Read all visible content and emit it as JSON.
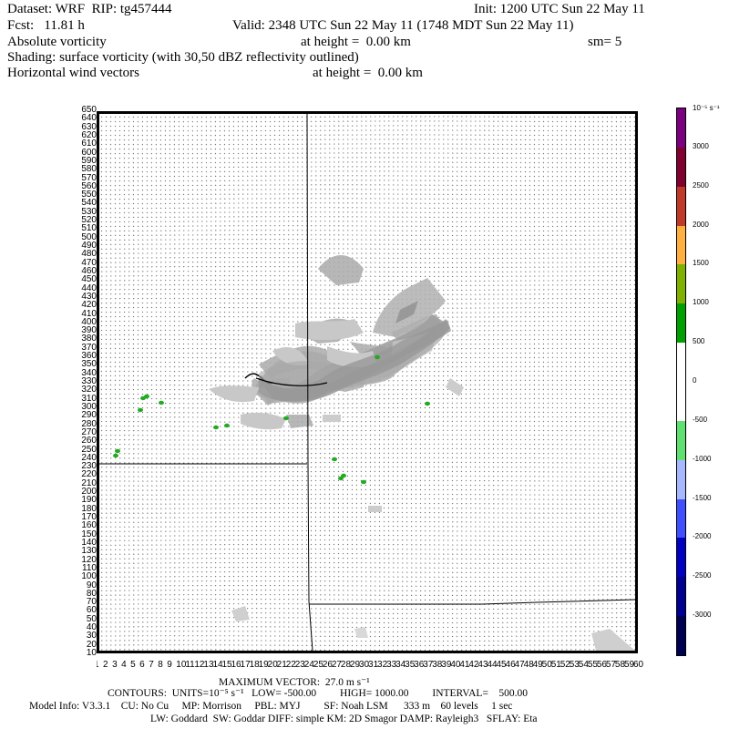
{
  "header": {
    "dataset_line": "Dataset: WRF  RIP: tg457444",
    "init_line": "Init: 1200 UTC Sun 22 May 11",
    "fcst_line": "Fcst:   11.81 h",
    "valid_line": "Valid: 2348 UTC Sun 22 May 11 (1748 MDT Sun 22 May 11)",
    "field1": "Absolute vorticity",
    "field1_height": "at height =  0.00 km",
    "sm": "sm= 5",
    "shading": "Shading: surface vorticity (with 30,50 dBZ reflectivity outlined)",
    "field2": "Horizontal wind vectors",
    "field2_height": "at height =  0.00 km"
  },
  "y_ticks": [
    "650",
    "640",
    "630",
    "620",
    "610",
    "600",
    "590",
    "580",
    "570",
    "560",
    "550",
    "540",
    "530",
    "520",
    "510",
    "500",
    "490",
    "480",
    "470",
    "460",
    "450",
    "440",
    "430",
    "420",
    "410",
    "400",
    "390",
    "380",
    "370",
    "360",
    "350",
    "340",
    "330",
    "320",
    "310",
    "300",
    "290",
    "280",
    "270",
    "260",
    "250",
    "240",
    "230",
    "220",
    "210",
    "200",
    "190",
    "180",
    "170",
    "160",
    "150",
    "140",
    "130",
    "120",
    "110",
    "100",
    "90",
    "80",
    "70",
    "60",
    "50",
    "40",
    "30",
    "20",
    "10"
  ],
  "x_ticks": [
    "1",
    "2",
    "3",
    "4",
    "5",
    "6",
    "7",
    "8",
    "9",
    "10",
    "11",
    "12",
    "13",
    "14",
    "15",
    "16",
    "17",
    "18",
    "19",
    "20",
    "21",
    "22",
    "23",
    "24",
    "25",
    "26",
    "27",
    "28",
    "29",
    "30",
    "31",
    "32",
    "33",
    "34",
    "35",
    "36",
    "37",
    "38",
    "39",
    "40",
    "41",
    "42",
    "43",
    "44",
    "45",
    "46",
    "47",
    "48",
    "49",
    "50",
    "51",
    "52",
    "53",
    "54",
    "55",
    "56",
    "57",
    "58",
    "59",
    "60"
  ],
  "colorbar": {
    "units": "10⁻⁵ s⁻¹",
    "labels": [
      "3000",
      "2500",
      "2000",
      "1500",
      "1000",
      "500",
      "0",
      "-500",
      "-1000",
      "-1500",
      "-2000",
      "-2500",
      "-3000"
    ],
    "colors": [
      "#7a0080",
      "#800030",
      "#c03a2a",
      "#ffb040",
      "#80b000",
      "#00a000",
      "#ffffff",
      "#ffffff",
      "#60e070",
      "#a8b8ff",
      "#4050ff",
      "#0000c0",
      "#000090",
      "#000050"
    ]
  },
  "footer": {
    "max_vector": "MAXIMUM VECTOR:  27.0 m s⁻¹",
    "contours": "CONTOURS:  UNITS=10⁻⁵ s⁻¹   LOW= -500.00         HIGH= 1000.00         INTERVAL=    500.00",
    "model_info": "Model Info: V3.3.1    CU: No Cu     MP: Morrison     PBL: MYJ         SF: Noah LSM      333 m    60 levels     1 sec",
    "physics": "LW: Goddard  SW: Goddar DIFF: simple KM: 2D Smagor DAMP: Rayleigh3   SFLAY: Eta"
  }
}
